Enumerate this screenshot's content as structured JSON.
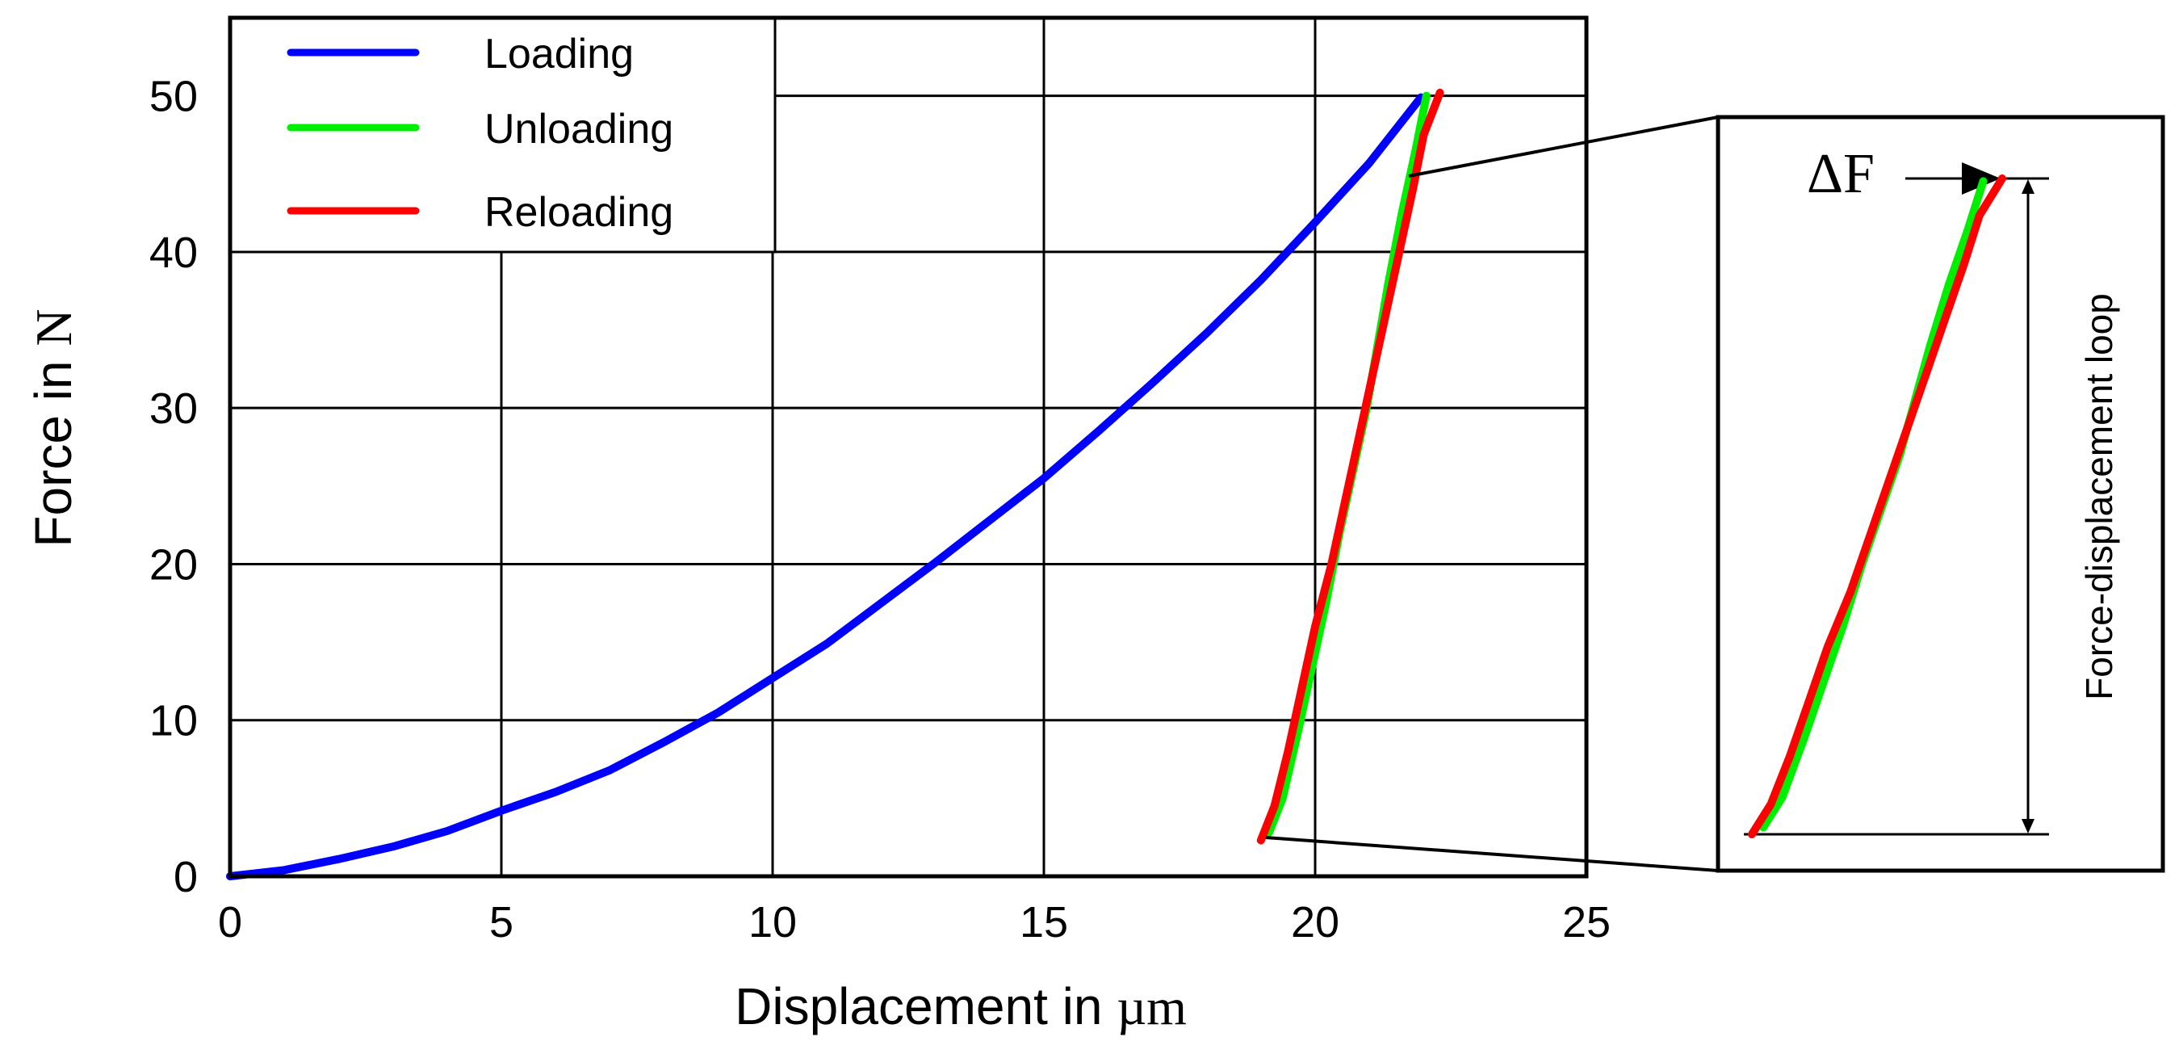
{
  "colors": {
    "loading": "#0000ff",
    "unloading": "#00ee00",
    "reloading": "#ff0000",
    "grid": "#000000",
    "frame": "#000000"
  },
  "chart_data": {
    "type": "line",
    "xlabel": {
      "prefix": "Displacement in ",
      "unit": "µm"
    },
    "ylabel": {
      "prefix": "Force in ",
      "unit": "N"
    },
    "xlim": [
      0,
      25
    ],
    "ylim": [
      0,
      55
    ],
    "xticks": [
      0,
      5,
      10,
      15,
      20,
      25
    ],
    "yticks": [
      0,
      10,
      20,
      30,
      40,
      50
    ],
    "grid": true,
    "legend": {
      "position": "top-left",
      "entries": [
        "Loading",
        "Unloading",
        "Reloading"
      ]
    },
    "series": [
      {
        "name": "Loading",
        "color": "#0000ff",
        "x": [
          0,
          1,
          2,
          3,
          4,
          5,
          6,
          7,
          8,
          9,
          10,
          11,
          12,
          13,
          14,
          15,
          16,
          17,
          18,
          19,
          20,
          21,
          21.95
        ],
        "y": [
          0,
          0.4,
          1.1,
          1.9,
          2.9,
          4.2,
          5.4,
          6.8,
          8.6,
          10.5,
          12.7,
          14.9,
          17.5,
          20.1,
          22.8,
          25.5,
          28.5,
          31.6,
          34.8,
          38.2,
          41.9,
          45.7,
          49.9
        ]
      },
      {
        "name": "Unloading",
        "color": "#00ee00",
        "x": [
          22.05,
          21.85,
          21.6,
          21.35,
          21.15,
          20.95,
          20.7,
          20.45,
          20.2,
          19.95,
          19.7,
          19.4,
          19.15
        ],
        "y": [
          50,
          46.5,
          42.5,
          38,
          34,
          30,
          26,
          22,
          17.5,
          13.5,
          9.5,
          5,
          2.8
        ]
      },
      {
        "name": "Reloading",
        "color": "#ff0000",
        "x": [
          19.0,
          19.25,
          19.5,
          19.75,
          20.0,
          20.3,
          20.55,
          20.8,
          21.05,
          21.3,
          21.55,
          21.8,
          22.0,
          22.3
        ],
        "y": [
          2.3,
          4.5,
          8,
          12,
          16,
          20,
          24,
          28,
          32,
          36,
          40,
          44,
          47.5,
          50.2
        ]
      }
    ]
  },
  "inset": {
    "delta_label": "ΔF",
    "loop_label": "Force-displacement loop"
  }
}
